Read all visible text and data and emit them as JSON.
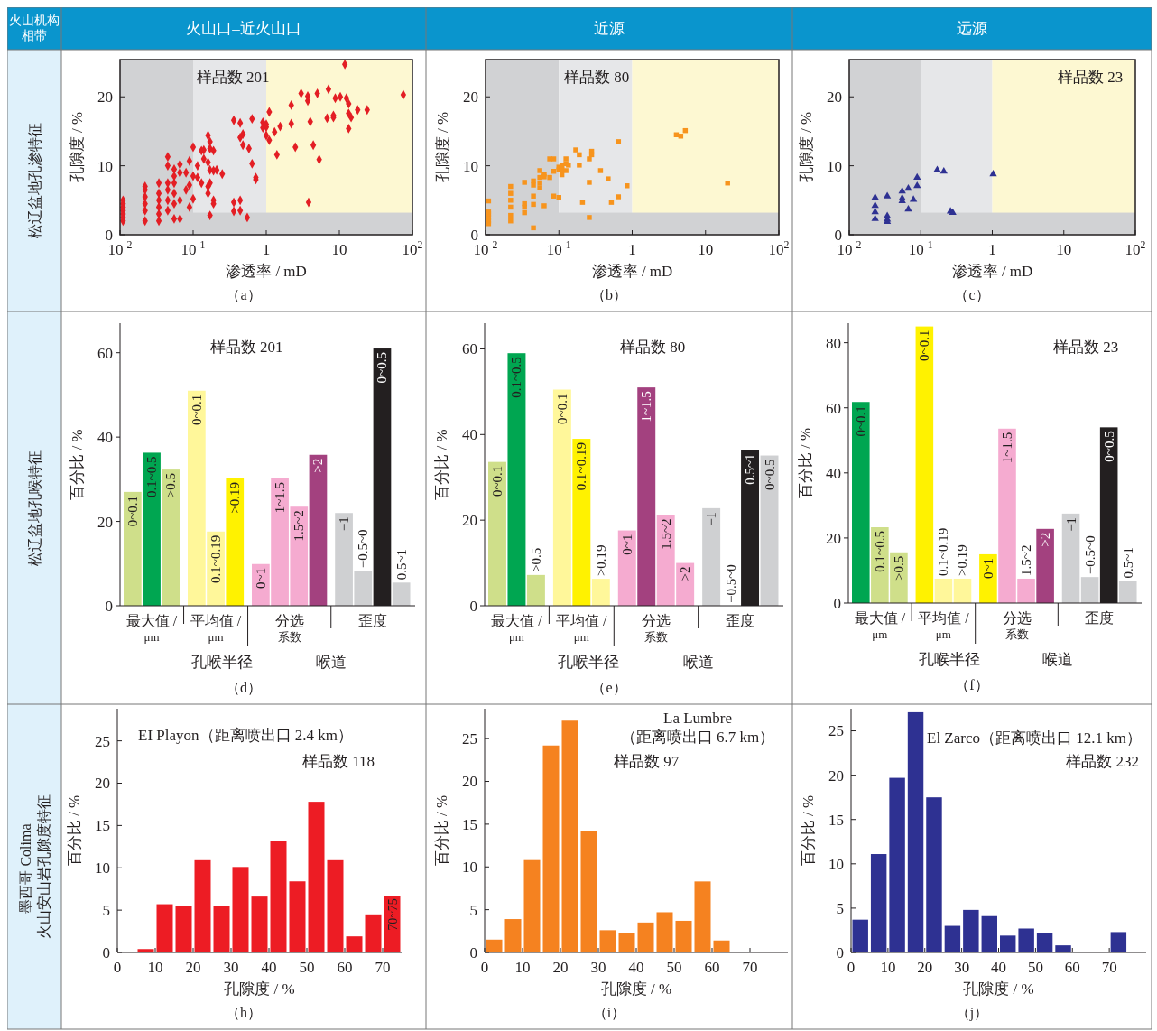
{
  "chart_data": [
    {
      "type": "scatter",
      "title": "火山口–近火山口",
      "subtitle": "松辽盆地孔渗特征",
      "xlabel": "渗透率 / mD",
      "ylabel": "孔隙度 / %",
      "annotations": [
        "样品数 201",
        "（a）",
        "火山机构相带"
      ],
      "log": "x",
      "marker": "diamond",
      "color": "#e31e24",
      "xlim": [
        0.01,
        100
      ],
      "xticks": [
        {
          "value": 0.01,
          "label": "10$^{-2}$"
        },
        {
          "value": 0.1,
          "label": "10$^{-1}$"
        },
        1,
        10,
        {
          "value": 100,
          "label": "10$^{2}$"
        }
      ],
      "ylim": [
        0,
        25.4
      ],
      "yticks": [
        0,
        10,
        20
      ],
      "bands": [
        {
          "axis": "x",
          "from": 0.01,
          "to": 0.1,
          "color": "#d1d2d4"
        },
        {
          "axis": "x",
          "from": 0.1,
          "to": 1,
          "color": "#e6e7e9"
        },
        {
          "axis": "x",
          "from": 1,
          "to": 100,
          "color": "#fdf8d2"
        },
        {
          "axis": "y",
          "from": 0,
          "to": 3.2,
          "color": "#d1d2d4"
        }
      ],
      "x": [
        0.011,
        0.011,
        0.011,
        0.011,
        0.011,
        0.011,
        0.011,
        0.022,
        0.022,
        0.022,
        0.022,
        0.022,
        0.022,
        0.034,
        0.034,
        0.034,
        0.034,
        0.034,
        0.034,
        0.045,
        0.045,
        0.045,
        0.045,
        0.045,
        0.045,
        0.055,
        0.055,
        0.055,
        0.055,
        0.055,
        0.055,
        0.066,
        0.066,
        0.066,
        0.066,
        0.08,
        0.08,
        0.089,
        0.089,
        0.089,
        0.1,
        0.1,
        0.1,
        0.115,
        0.115,
        0.13,
        0.13,
        0.14,
        0.14,
        0.16,
        0.16,
        0.16,
        0.16,
        0.17,
        0.17,
        0.17,
        0.17,
        0.17,
        0.19,
        0.19,
        0.19,
        0.19,
        0.21,
        0.25,
        0.36,
        0.36,
        0.36,
        0.44,
        0.44,
        0.44,
        0.44,
        0.48,
        0.48,
        0.55,
        0.58,
        0.64,
        0.64,
        0.72,
        0.72,
        0.9,
        0.9,
        1,
        1,
        1,
        1.1,
        1.1,
        1.3,
        1.4,
        1.55,
        2.2,
        2.2,
        2.5,
        3,
        3.7,
        3.7,
        3.8,
        4,
        4.4,
        5,
        5.3,
        6.8,
        7.1,
        8.3,
        8.3,
        8.8,
        10.3,
        11.9,
        12.5,
        13.4,
        13.4,
        13.4,
        14.5,
        17.8,
        24,
        75
      ],
      "values": [
        2,
        2.5,
        3,
        3.5,
        4,
        4.5,
        5,
        2,
        3.5,
        4.5,
        5.5,
        6.5,
        7,
        2,
        3,
        4,
        5,
        6,
        7.5,
        3.5,
        5,
        6.5,
        7.5,
        10,
        11.3,
        2.3,
        4.5,
        6,
        7.5,
        8.5,
        9.5,
        2.3,
        5,
        9,
        10.2,
        6.5,
        9,
        4,
        7.2,
        10.7,
        8.5,
        12.7,
        5.2,
        10,
        8.3,
        12.2,
        7.5,
        12.3,
        11,
        14.4,
        10.5,
        7,
        6,
        13.5,
        12.5,
        9.4,
        7.5,
        2.8,
        12.2,
        5,
        4.5,
        9.3,
        9.4,
        8.8,
        16.6,
        4.7,
        3.4,
        14.1,
        16.2,
        5,
        3.5,
        14.6,
        13,
        2.5,
        12.5,
        16.8,
        10.3,
        8,
        8.3,
        16.3,
        15.5,
        15.6,
        14.4,
        16,
        17.8,
        13.7,
        14.9,
        11.6,
        15.7,
        18.8,
        16.1,
        12.7,
        20.5,
        20.1,
        19.4,
        4.7,
        16.4,
        13,
        20.5,
        10.9,
        16.9,
        21.1,
        17,
        17.3,
        19.8,
        20,
        24.7,
        19.8,
        19,
        17.6,
        15.4,
        17,
        18.1,
        18.1,
        20.3
      ]
    },
    {
      "type": "scatter",
      "title": "近源",
      "xlabel": "渗透率 / mD",
      "ylabel": "孔隙度 / %",
      "annotations": [
        "样品数 80",
        "（b）"
      ],
      "log": "x",
      "marker": "square",
      "color": "#f7941d",
      "xlim": [
        0.01,
        100
      ],
      "xticks": [
        {
          "value": 0.01,
          "label": "10$^{-2}$"
        },
        {
          "value": 0.1,
          "label": "10$^{-1}$"
        },
        1,
        10,
        {
          "value": 100,
          "label": "10$^{2}$"
        }
      ],
      "ylim": [
        0,
        25.4
      ],
      "yticks": [
        0,
        10,
        20
      ],
      "bands": [
        {
          "axis": "x",
          "from": 0.01,
          "to": 0.1,
          "color": "#d1d2d4"
        },
        {
          "axis": "x",
          "from": 0.1,
          "to": 1,
          "color": "#e6e7e9"
        },
        {
          "axis": "x",
          "from": 1,
          "to": 100,
          "color": "#fdf8d2"
        },
        {
          "axis": "y",
          "from": 0,
          "to": 3.2,
          "color": "#d1d2d4"
        }
      ],
      "x": [
        0.011,
        0.011,
        0.011,
        0.011,
        0.011,
        0.011,
        0.022,
        0.022,
        0.022,
        0.022,
        0.022,
        0.022,
        0.034,
        0.034,
        0.034,
        0.034,
        0.045,
        0.045,
        0.045,
        0.045,
        0.045,
        0.055,
        0.055,
        0.055,
        0.055,
        0.063,
        0.063,
        0.063,
        0.075,
        0.075,
        0.085,
        0.085,
        0.085,
        0.1,
        0.1,
        0.1,
        0.11,
        0.11,
        0.11,
        0.125,
        0.125,
        0.125,
        0.135,
        0.17,
        0.19,
        0.19,
        0.21,
        0.26,
        0.26,
        0.26,
        0.28,
        0.28,
        0.37,
        0.47,
        0.52,
        0.65,
        0.65,
        0.85,
        4,
        4.6,
        5.3,
        20
      ],
      "values": [
        1.6,
        2,
        2.5,
        3,
        3.3,
        4.9,
        2,
        2.8,
        4,
        5,
        6,
        7,
        3.2,
        4,
        4.5,
        7.6,
        1,
        4.4,
        5.6,
        7.2,
        7.8,
        6.8,
        7.5,
        8.3,
        9.3,
        4.2,
        8.4,
        8.8,
        8.3,
        11,
        11,
        5.6,
        9.2,
        5.4,
        9.4,
        9.8,
        8.7,
        10,
        9.5,
        11,
        9.3,
        10.3,
        10.1,
        12.3,
        11.6,
        10.1,
        4.7,
        11,
        7.6,
        2.5,
        12.1,
        11.6,
        9.3,
        8.1,
        4.7,
        13.5,
        5.5,
        7.1,
        14.5,
        14.3,
        15.1,
        7.5
      ]
    },
    {
      "type": "scatter",
      "title": "远源",
      "xlabel": "渗透率 / mD",
      "ylabel": "孔隙度 / %",
      "annotations": [
        "样品数 23",
        "（c）"
      ],
      "log": "x",
      "marker": "triangle",
      "color": "#2e3192",
      "xlim": [
        0.01,
        100
      ],
      "xticks": [
        {
          "value": 0.01,
          "label": "10$^{-2}$"
        },
        {
          "value": 0.1,
          "label": "10$^{-1}$"
        },
        1,
        10,
        {
          "value": 100,
          "label": "10$^{2}$"
        }
      ],
      "ylim": [
        0,
        25.4
      ],
      "yticks": [
        0,
        10,
        20
      ],
      "bands": [
        {
          "axis": "x",
          "from": 0.01,
          "to": 0.1,
          "color": "#d1d2d4"
        },
        {
          "axis": "x",
          "from": 0.1,
          "to": 1,
          "color": "#e6e7e9"
        },
        {
          "axis": "x",
          "from": 1,
          "to": 100,
          "color": "#fdf8d2"
        },
        {
          "axis": "y",
          "from": 0,
          "to": 3.2,
          "color": "#d1d2d4"
        }
      ],
      "x": [
        0.023,
        0.023,
        0.023,
        0.023,
        0.034,
        0.034,
        0.034,
        0.034,
        0.055,
        0.055,
        0.055,
        0.067,
        0.067,
        0.079,
        0.089,
        0.089,
        0.17,
        0.21,
        0.26,
        0.28,
        1.03
      ],
      "values": [
        5.4,
        4.2,
        3.3,
        2.3,
        5.6,
        2.7,
        2.2,
        1.9,
        6.3,
        5.3,
        4.9,
        6.7,
        3.7,
        5.1,
        8.3,
        7.1,
        9.4,
        9.2,
        3.4,
        3.2,
        8.8
      ]
    },
    {
      "type": "bar",
      "subtitle": "松辽盆地孔喉特征",
      "ylabel": "百分比 / %",
      "annotations": [
        "样品数 201",
        "最大值 / μm",
        "平均值 / μm",
        "分选系数",
        "歪度",
        "孔喉半径",
        "喉道",
        "（d）"
      ],
      "ylim": [
        0,
        67
      ],
      "yticks": [
        0,
        20,
        40,
        60
      ],
      "categories": [
        "0~0.1",
        "0.1~0.5",
        ">0.5",
        "0~0.1",
        "0.1~0.19",
        ">0.19",
        "0~1",
        "1~1.5",
        "1.5~2",
        ">2",
        "−1",
        "−0.5~0",
        "0~0.5",
        "0.5~1"
      ],
      "values": [
        27,
        36.3,
        32.3,
        51,
        17.6,
        30.2,
        9.9,
        30.2,
        23.5,
        35.8,
        22,
        8.3,
        61,
        5.5
      ],
      "colors": [
        "#cfdf8a",
        "#00a651",
        "#cfdf8a",
        "#fff79a",
        "#fff79a",
        "#fff200",
        "#f5abd0",
        "#f5abd0",
        "#f5abd0",
        "#a3417f",
        "#cfd0d2",
        "#cfd0d2",
        "#231f20",
        "#cfd0d2"
      ]
    },
    {
      "type": "bar",
      "ylabel": "百分比 / %",
      "annotations": [
        "样品数 80",
        "最大值 / μm",
        "平均值 / μm",
        "分选系数",
        "歪度",
        "孔喉半径",
        "喉道",
        "（e）"
      ],
      "ylim": [
        0,
        66
      ],
      "yticks": [
        0,
        20,
        40,
        60
      ],
      "categories": [
        "0~0.1",
        "0.1~0.5",
        ">0.5",
        "0~0.1",
        "0.1~0.19",
        ">0.19",
        "0~1",
        "1~1.5",
        "1.5~2",
        ">2",
        "−1",
        "−0.5~0",
        "0.5~1",
        "0~0.5"
      ],
      "values": [
        33.6,
        59,
        7.2,
        50.5,
        39,
        6.3,
        17.6,
        51,
        21.2,
        10,
        22.8,
        0,
        36.4,
        35.1
      ],
      "colors": [
        "#cfdf8a",
        "#00a651",
        "#cfdf8a",
        "#fff79a",
        "#fff200",
        "#fff79a",
        "#f5abd0",
        "#a3417f",
        "#f5abd0",
        "#f5abd0",
        "#cfd0d2",
        "#cfd0d2",
        "#231f20",
        "#cfd0d2"
      ]
    },
    {
      "type": "bar",
      "ylabel": "百分比 / %",
      "annotations": [
        "样品数 23",
        "最大值 / μm",
        "平均值 / μm",
        "分选系数",
        "歪度",
        "孔喉半径",
        "喉道",
        "（f）"
      ],
      "ylim": [
        0,
        86
      ],
      "yticks": [
        0,
        20,
        40,
        60,
        80
      ],
      "categories": [
        "0~0.1",
        "0.1~0.5",
        ">0.5",
        "0~0.1",
        "0.1~0.19",
        ">0.19",
        "0~1",
        "1~1.5",
        "1.5~2",
        ">2",
        "−1",
        "−0.5~0",
        "0~0.5",
        "0.5~1"
      ],
      "values": [
        61.8,
        23.3,
        15.6,
        85,
        7.5,
        7.5,
        15,
        53.6,
        7.5,
        22.8,
        27.5,
        8,
        54,
        6.8
      ],
      "colors": [
        "#00a651",
        "#cfdf8a",
        "#cfdf8a",
        "#fff200",
        "#fff79a",
        "#fff79a",
        "#fff200",
        "#f5abd0",
        "#f5abd0",
        "#a3417f",
        "#cfd0d2",
        "#cfd0d2",
        "#231f20",
        "#cfd0d2"
      ]
    },
    {
      "type": "histogram",
      "subtitle": "墨西哥 Colima 火山安山岩孔隙度特征",
      "xlabel": "孔隙度 / %",
      "ylabel": "百分比 / %",
      "annotations": [
        "EI Playon（距离喷出口 2.4 km）",
        "样品数 118",
        "（h）",
        {
          "text": "70~75",
          "x": 72.5,
          "y": 6.7
        }
      ],
      "color": "#ed1c24",
      "xlim": [
        0,
        75
      ],
      "xticks": [
        0,
        10,
        20,
        30,
        40,
        50,
        60,
        70
      ],
      "ylim": [
        0,
        28.8
      ],
      "yticks": [
        0,
        5,
        10,
        15,
        20,
        25
      ],
      "bins": [
        0,
        5,
        10,
        15,
        20,
        25,
        30,
        35,
        40,
        45,
        50,
        55,
        60,
        65,
        70,
        75
      ],
      "values": [
        0,
        0.4,
        5.7,
        5.5,
        10.9,
        5.5,
        10.1,
        6.6,
        13.2,
        8.4,
        17.8,
        10.9,
        1.9,
        4.5,
        6.7
      ]
    },
    {
      "type": "histogram",
      "xlabel": "孔隙度 / %",
      "ylabel": "百分比 / %",
      "annotations": [
        "La Lumbre\n（距离喷出口 6.7 km）",
        "样品数 97",
        "（i）"
      ],
      "color": "#f58220",
      "xlim": [
        0,
        80
      ],
      "xticks": [
        0,
        10,
        20,
        30,
        40,
        50,
        60,
        70
      ],
      "ylim": [
        0,
        28.5
      ],
      "yticks": [
        0,
        5,
        10,
        15,
        20,
        25
      ],
      "bins": [
        0,
        5,
        10,
        15,
        20,
        25,
        30,
        35,
        40,
        45,
        50,
        55,
        60,
        65
      ],
      "values": [
        1.5,
        3.9,
        10.8,
        24.2,
        27.1,
        14.2,
        2.6,
        2.3,
        3.5,
        4.7,
        3.7,
        8.3,
        1.4
      ]
    },
    {
      "type": "histogram",
      "xlabel": "孔隙度 / %",
      "ylabel": "百分比 / %",
      "annotations": [
        "El Zarco（距离喷出口 12.1 km）",
        "样品数 232",
        "（j）"
      ],
      "color": "#2e3192",
      "xlim": [
        0,
        80
      ],
      "xticks": [
        0,
        10,
        20,
        30,
        40,
        50,
        60,
        70
      ],
      "ylim": [
        0,
        27.5
      ],
      "yticks": [
        0,
        5,
        10,
        15,
        20,
        25
      ],
      "bins": [
        0,
        5,
        10,
        15,
        20,
        25,
        30,
        35,
        40,
        45,
        50,
        55,
        60,
        65,
        70,
        75
      ],
      "values": [
        3.7,
        11.1,
        19.7,
        27.1,
        17.5,
        3,
        4.8,
        4.1,
        1.9,
        2.7,
        2.2,
        0.8,
        0,
        0,
        2.3
      ]
    }
  ]
}
